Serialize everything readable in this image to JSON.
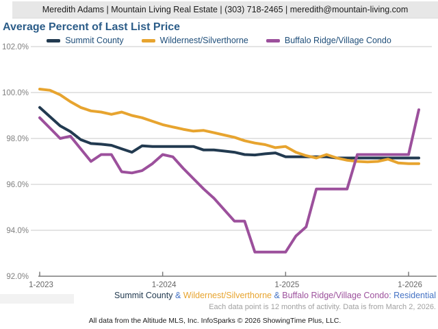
{
  "header": {
    "contact_bar": "Meredith Adams | Mountain Living Real Estate | (303) 718-2465 | meredith@mountain-living.com"
  },
  "title": "Average Percent of Last List Price",
  "chart_data": {
    "type": "line",
    "title": "Average Percent of Last List Price",
    "grid": true,
    "legend_position": "top",
    "x_axis": {
      "tick_labels": [
        "1-2023",
        "1-2024",
        "1-2025",
        "1-2026"
      ],
      "tick_point_indexes": [
        0,
        12,
        24,
        36
      ],
      "points_are": "monthly",
      "n_points": 38,
      "first_point": "1-2023",
      "last_point": "2-2026"
    },
    "y_axis": {
      "unit": "%",
      "ylim": [
        92,
        102
      ],
      "tick_values": [
        102,
        100,
        98,
        96,
        94,
        92
      ],
      "tick_labels": [
        "102.0%",
        "100.0%",
        "98.0%",
        "96.0%",
        "94.0%",
        "92.0%"
      ]
    },
    "series": [
      {
        "name": "Summit County",
        "color": "#223a50",
        "values": [
          99.35,
          98.95,
          98.55,
          98.3,
          97.95,
          97.78,
          97.75,
          97.7,
          97.55,
          97.4,
          97.68,
          97.65,
          97.65,
          97.65,
          97.65,
          97.65,
          97.5,
          97.5,
          97.45,
          97.4,
          97.3,
          97.28,
          97.33,
          97.37,
          97.2,
          97.2,
          97.2,
          97.2,
          97.2,
          97.15,
          97.15,
          97.15,
          97.15,
          97.15,
          97.15,
          97.15,
          97.15,
          97.15
        ]
      },
      {
        "name": "Wildernest/Silverthorne",
        "color": "#e7a42f",
        "values": [
          100.15,
          100.1,
          99.9,
          99.6,
          99.35,
          99.2,
          99.15,
          99.05,
          99.15,
          99.0,
          98.9,
          98.75,
          98.6,
          98.5,
          98.4,
          98.32,
          98.35,
          98.25,
          98.15,
          98.05,
          97.9,
          97.8,
          97.73,
          97.6,
          97.65,
          97.4,
          97.25,
          97.15,
          97.3,
          97.15,
          97.05,
          97.0,
          96.98,
          97.0,
          97.1,
          96.93,
          96.9,
          96.9
        ]
      },
      {
        "name": "Buffalo Ridge/Village Condo",
        "color": "#9c509c",
        "values": [
          98.9,
          98.45,
          98.0,
          98.1,
          97.55,
          97.0,
          97.3,
          97.3,
          96.55,
          96.5,
          96.6,
          96.9,
          97.3,
          97.2,
          96.7,
          96.25,
          95.8,
          95.4,
          94.9,
          94.4,
          94.4,
          93.05,
          93.05,
          93.05,
          93.05,
          93.75,
          94.15,
          95.8,
          95.8,
          95.8,
          95.8,
          97.3,
          97.3,
          97.3,
          97.3,
          97.3,
          97.3,
          99.25
        ]
      }
    ]
  },
  "footer": {
    "series_line_parts": [
      {
        "text": "Summit County",
        "color": "#223a50"
      },
      {
        "text": " & ",
        "color": "#4472c4"
      },
      {
        "text": "Wildernest/Silverthorne",
        "color": "#e7a42f"
      },
      {
        "text": " & ",
        "color": "#4472c4"
      },
      {
        "text": "Buffalo Ridge/Village Condo",
        "color": "#9c509c"
      },
      {
        "text": ": Residential",
        "color": "#4472c4"
      }
    ],
    "note": "Each data point is 12 months of activity. Data is from March 2, 2026.",
    "attribution": "All data from the Altitude MLS, Inc. InfoSparks © 2026 ShowingTime Plus, LLC."
  }
}
